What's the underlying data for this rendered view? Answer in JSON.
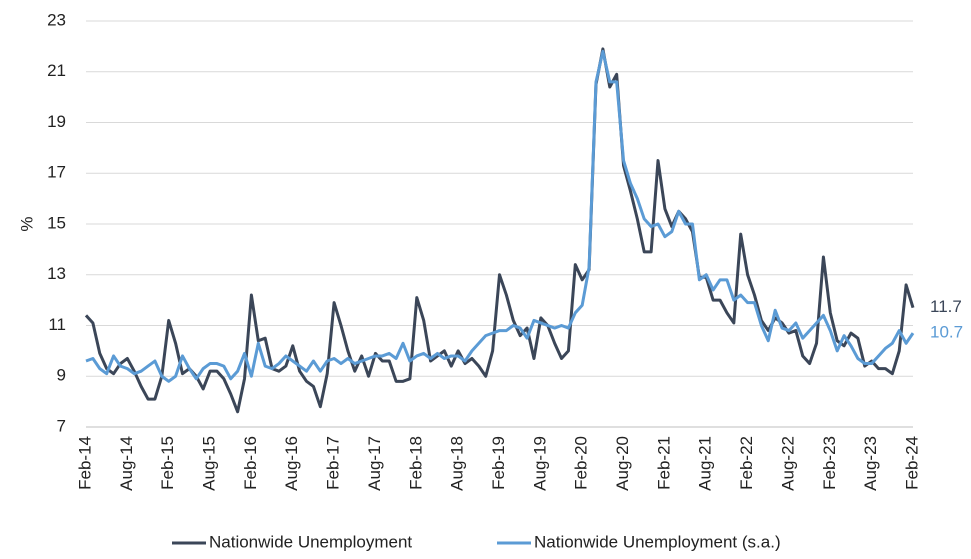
{
  "chart_data": {
    "type": "line",
    "categories": [
      "Feb-14",
      null,
      null,
      null,
      null,
      null,
      "Aug-14",
      null,
      null,
      null,
      null,
      null,
      "Feb-15",
      null,
      null,
      null,
      null,
      null,
      "Aug-15",
      null,
      null,
      null,
      null,
      null,
      "Feb-16",
      null,
      null,
      null,
      null,
      null,
      "Aug-16",
      null,
      null,
      null,
      null,
      null,
      "Feb-17",
      null,
      null,
      null,
      null,
      null,
      "Aug-17",
      null,
      null,
      null,
      null,
      null,
      "Feb-18",
      null,
      null,
      null,
      null,
      null,
      "Aug-18",
      null,
      null,
      null,
      null,
      null,
      "Feb-19",
      null,
      null,
      null,
      null,
      null,
      "Aug-19",
      null,
      null,
      null,
      null,
      null,
      "Feb-20",
      null,
      null,
      null,
      null,
      null,
      "Aug-20",
      null,
      null,
      null,
      null,
      null,
      "Feb-21",
      null,
      null,
      null,
      null,
      null,
      "Aug-21",
      null,
      null,
      null,
      null,
      null,
      "Feb-22",
      null,
      null,
      null,
      null,
      null,
      "Aug-22",
      null,
      null,
      null,
      null,
      null,
      "Feb-23",
      null,
      null,
      null,
      null,
      null,
      "Aug-23",
      null,
      null,
      null,
      null,
      null,
      "Feb-24"
    ],
    "y_label": "%",
    "ylim": [
      7,
      23
    ],
    "yticks": [
      7,
      9,
      11,
      13,
      15,
      17,
      19,
      21,
      23
    ],
    "grid": true,
    "legend": "bottom",
    "series": [
      {
        "name": "Nationwide Unemployment",
        "color": "#3b4658",
        "values": [
          11.4,
          11.1,
          9.9,
          9.3,
          9.1,
          9.5,
          9.7,
          9.2,
          8.6,
          8.1,
          8.1,
          9.0,
          11.2,
          10.3,
          9.1,
          9.3,
          9.0,
          8.5,
          9.2,
          9.2,
          8.9,
          8.3,
          7.6,
          8.9,
          12.2,
          10.4,
          10.5,
          9.3,
          9.2,
          9.4,
          10.2,
          9.2,
          8.8,
          8.6,
          7.8,
          9.1,
          11.9,
          11.0,
          10.0,
          9.2,
          9.8,
          9.0,
          9.9,
          9.6,
          9.6,
          8.8,
          8.8,
          8.9,
          12.1,
          11.2,
          9.6,
          9.8,
          10.0,
          9.4,
          10.0,
          9.5,
          9.7,
          9.4,
          9.0,
          10.0,
          13.0,
          12.2,
          11.2,
          10.6,
          10.9,
          9.7,
          11.3,
          11.0,
          10.3,
          9.7,
          10.0,
          13.4,
          12.8,
          13.2,
          20.5,
          21.9,
          20.4,
          20.9,
          17.3,
          16.3,
          15.2,
          13.9,
          13.9,
          17.5,
          15.6,
          14.9,
          15.5,
          15.2,
          14.7,
          12.9,
          12.9,
          12.0,
          12.0,
          11.5,
          11.1,
          14.6,
          13.0,
          12.2,
          11.2,
          10.8,
          11.3,
          11.1,
          10.7,
          10.8,
          9.8,
          9.5,
          10.3,
          13.7,
          11.5,
          10.4,
          10.2,
          10.7,
          10.5,
          9.4,
          9.6,
          9.3,
          9.3,
          9.1,
          10.0,
          12.6,
          11.7
        ]
      },
      {
        "name": "Nationwide Unemployment (s.a.)",
        "color": "#5b9bd5",
        "values": [
          9.6,
          9.7,
          9.3,
          9.1,
          9.8,
          9.4,
          9.3,
          9.1,
          9.2,
          9.4,
          9.6,
          9.0,
          8.8,
          9.0,
          9.8,
          9.3,
          8.9,
          9.3,
          9.5,
          9.5,
          9.4,
          8.9,
          9.2,
          9.9,
          9.0,
          10.3,
          9.4,
          9.3,
          9.5,
          9.8,
          9.6,
          9.4,
          9.2,
          9.6,
          9.2,
          9.6,
          9.7,
          9.5,
          9.7,
          9.5,
          9.6,
          9.7,
          9.8,
          9.8,
          9.9,
          9.7,
          10.3,
          9.6,
          9.8,
          9.9,
          9.7,
          9.9,
          9.7,
          9.8,
          9.8,
          9.6,
          10.0,
          10.3,
          10.6,
          10.7,
          10.8,
          10.8,
          11.0,
          10.9,
          10.5,
          11.2,
          11.1,
          11.0,
          10.9,
          11.0,
          10.9,
          11.5,
          11.8,
          13.3,
          20.6,
          21.8,
          20.6,
          20.6,
          17.5,
          16.6,
          16.0,
          15.2,
          14.9,
          15.0,
          14.5,
          14.7,
          15.5,
          15.0,
          15.0,
          12.8,
          13.0,
          12.4,
          12.8,
          12.8,
          12.0,
          12.2,
          11.9,
          11.9,
          11.0,
          10.4,
          11.6,
          10.9,
          10.8,
          11.1,
          10.5,
          10.8,
          11.1,
          11.4,
          10.8,
          10.0,
          10.6,
          10.2,
          9.7,
          9.5,
          9.5,
          9.8,
          10.1,
          10.3,
          10.8,
          10.3,
          10.7
        ]
      }
    ]
  }
}
